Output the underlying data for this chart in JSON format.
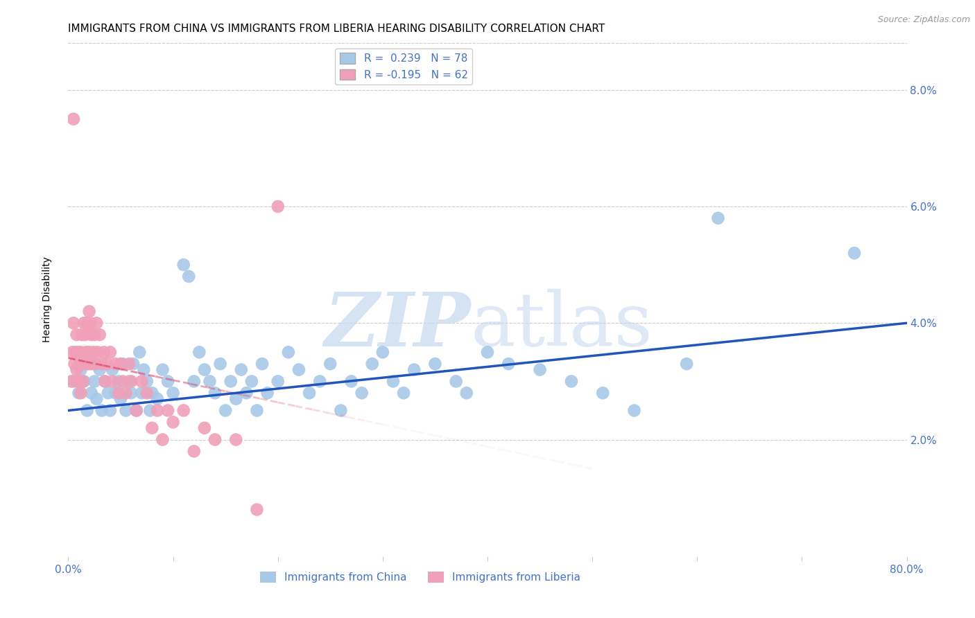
{
  "title": "IMMIGRANTS FROM CHINA VS IMMIGRANTS FROM LIBERIA HEARING DISABILITY CORRELATION CHART",
  "source": "Source: ZipAtlas.com",
  "xlabel_china": "Immigrants from China",
  "xlabel_liberia": "Immigrants from Liberia",
  "ylabel": "Hearing Disability",
  "watermark_zip": "ZIP",
  "watermark_atlas": "atlas",
  "china_color": "#a8c8e8",
  "liberia_color": "#f0a0b8",
  "china_line_color": "#2255bb",
  "liberia_line_color": "#dd4466",
  "china_R": 0.239,
  "china_N": 78,
  "liberia_R": -0.195,
  "liberia_N": 62,
  "xmin": 0.0,
  "xmax": 0.8,
  "ymin": 0.0,
  "ymax": 0.088,
  "background_color": "#ffffff",
  "grid_color": "#cccccc",
  "axis_color": "#4472c4",
  "title_fontsize": 11,
  "label_fontsize": 10,
  "tick_fontsize": 11,
  "china_x": [
    0.005,
    0.008,
    0.01,
    0.012,
    0.015,
    0.018,
    0.02,
    0.022,
    0.025,
    0.027,
    0.03,
    0.032,
    0.035,
    0.038,
    0.04,
    0.042,
    0.045,
    0.048,
    0.05,
    0.052,
    0.055,
    0.058,
    0.06,
    0.062,
    0.065,
    0.068,
    0.07,
    0.072,
    0.075,
    0.078,
    0.08,
    0.085,
    0.09,
    0.095,
    0.1,
    0.11,
    0.115,
    0.12,
    0.125,
    0.13,
    0.135,
    0.14,
    0.145,
    0.15,
    0.155,
    0.16,
    0.165,
    0.17,
    0.175,
    0.18,
    0.185,
    0.19,
    0.2,
    0.21,
    0.22,
    0.23,
    0.24,
    0.25,
    0.26,
    0.27,
    0.28,
    0.29,
    0.3,
    0.31,
    0.32,
    0.33,
    0.35,
    0.37,
    0.38,
    0.4,
    0.42,
    0.45,
    0.48,
    0.51,
    0.54,
    0.59,
    0.62,
    0.75
  ],
  "china_y": [
    0.03,
    0.035,
    0.028,
    0.032,
    0.03,
    0.025,
    0.033,
    0.028,
    0.03,
    0.027,
    0.032,
    0.025,
    0.03,
    0.028,
    0.025,
    0.032,
    0.028,
    0.03,
    0.027,
    0.033,
    0.025,
    0.03,
    0.028,
    0.033,
    0.025,
    0.035,
    0.028,
    0.032,
    0.03,
    0.025,
    0.028,
    0.027,
    0.032,
    0.03,
    0.028,
    0.05,
    0.048,
    0.03,
    0.035,
    0.032,
    0.03,
    0.028,
    0.033,
    0.025,
    0.03,
    0.027,
    0.032,
    0.028,
    0.03,
    0.025,
    0.033,
    0.028,
    0.03,
    0.035,
    0.032,
    0.028,
    0.03,
    0.033,
    0.025,
    0.03,
    0.028,
    0.033,
    0.035,
    0.03,
    0.028,
    0.032,
    0.033,
    0.03,
    0.028,
    0.035,
    0.033,
    0.032,
    0.03,
    0.028,
    0.025,
    0.033,
    0.058,
    0.052
  ],
  "liberia_x": [
    0.003,
    0.004,
    0.005,
    0.005,
    0.006,
    0.007,
    0.008,
    0.008,
    0.009,
    0.01,
    0.01,
    0.011,
    0.012,
    0.012,
    0.013,
    0.014,
    0.015,
    0.015,
    0.016,
    0.017,
    0.018,
    0.018,
    0.019,
    0.02,
    0.02,
    0.021,
    0.022,
    0.023,
    0.024,
    0.025,
    0.026,
    0.027,
    0.028,
    0.03,
    0.032,
    0.034,
    0.035,
    0.037,
    0.04,
    0.042,
    0.045,
    0.048,
    0.05,
    0.052,
    0.055,
    0.058,
    0.06,
    0.065,
    0.07,
    0.075,
    0.08,
    0.085,
    0.09,
    0.095,
    0.1,
    0.11,
    0.12,
    0.13,
    0.14,
    0.16,
    0.18,
    0.2
  ],
  "liberia_y": [
    0.03,
    0.035,
    0.075,
    0.04,
    0.033,
    0.035,
    0.038,
    0.032,
    0.03,
    0.035,
    0.03,
    0.033,
    0.035,
    0.028,
    0.038,
    0.03,
    0.04,
    0.033,
    0.038,
    0.035,
    0.04,
    0.035,
    0.033,
    0.042,
    0.035,
    0.04,
    0.038,
    0.033,
    0.035,
    0.038,
    0.033,
    0.04,
    0.035,
    0.038,
    0.033,
    0.035,
    0.03,
    0.033,
    0.035,
    0.03,
    0.033,
    0.028,
    0.033,
    0.03,
    0.028,
    0.033,
    0.03,
    0.025,
    0.03,
    0.028,
    0.022,
    0.025,
    0.02,
    0.025,
    0.023,
    0.025,
    0.018,
    0.022,
    0.02,
    0.02,
    0.008,
    0.06
  ],
  "china_line_x0": 0.0,
  "china_line_x1": 0.8,
  "china_line_y0": 0.025,
  "china_line_y1": 0.04,
  "liberia_line_x0": 0.0,
  "liberia_line_x1": 0.5,
  "liberia_line_y0": 0.034,
  "liberia_line_y1": 0.015
}
